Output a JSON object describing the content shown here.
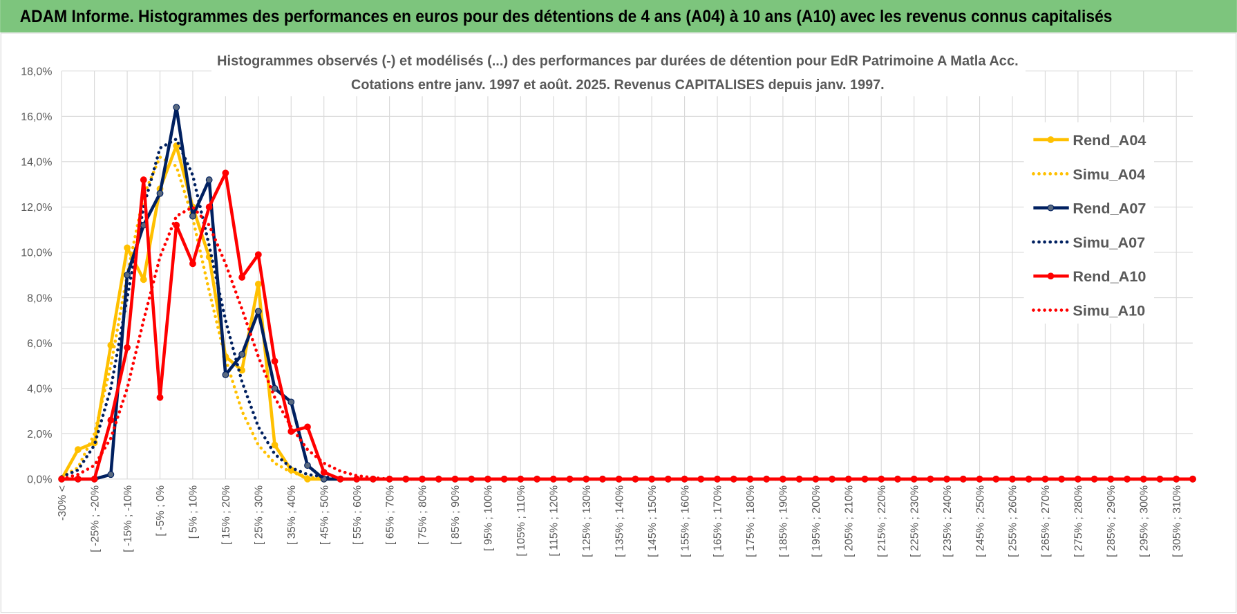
{
  "header": {
    "title": "ADAM Informe. Histogrammes des performances en euros pour des détentions de 4 ans (A04) à 10 ans (A10) avec les revenus connus capitalisés"
  },
  "chart_data": {
    "type": "line",
    "title": "Histogrammes observés (-) et modélisés (...) des performances par durées de détention pour EdR Patrimoine A Matla Acc.",
    "subtitle": "Cotations entre janv. 1997 et août. 2025. Revenus CAPITALISES depuis janv. 1997.",
    "categories": [
      "-30% <",
      null,
      "[ -25% ; -20%",
      null,
      "[ -15% ; -10%",
      null,
      "[ -5% ; 0%",
      null,
      "[ 5% ; 10%",
      null,
      "[ 15% ; 20%",
      null,
      "[ 25% ; 30%",
      null,
      "[ 35% ; 40%",
      null,
      "[ 45% ; 50%",
      null,
      "[ 55% ; 60%",
      null,
      "[ 65% ; 70%",
      null,
      "[ 75% ; 80%",
      null,
      "[ 85% ; 90%",
      null,
      "[ 95% ; 100%",
      null,
      "[ 105% ; 110%",
      null,
      "[ 115% ; 120%",
      null,
      "[ 125% ; 130%",
      null,
      "[ 135% ; 140%",
      null,
      "[ 145% ; 150%",
      null,
      "[ 155% ; 160%",
      null,
      "[ 165% ; 170%",
      null,
      "[ 175% ; 180%",
      null,
      "[ 185% ; 190%",
      null,
      "[ 195% ; 200%",
      null,
      "[ 205% ; 210%",
      null,
      "[ 215% ; 220%",
      null,
      "[ 225% ; 230%",
      null,
      "[ 235% ; 240%",
      null,
      "[ 245% ; 250%",
      null,
      "[ 255% ; 260%",
      null,
      "[ 265% ; 270%",
      null,
      "[ 275% ; 280%",
      null,
      "[ 285% ; 290%",
      null,
      "[ 295% ; 300%",
      null,
      "[ 305% ; 310%",
      null
    ],
    "series": [
      {
        "name": "Rend_A04",
        "color": "#FFC000",
        "style": "solid",
        "markers": true,
        "values": [
          0,
          1.3,
          1.6,
          5.9,
          10.2,
          8.8,
          12.8,
          14.7,
          12.0,
          9.8,
          5.4,
          4.8,
          8.6,
          1.5,
          0.4,
          0,
          0,
          0,
          0,
          0,
          0,
          0,
          0,
          0,
          0,
          0,
          0,
          0,
          0,
          0,
          0,
          0,
          0,
          0,
          0,
          0,
          0,
          0,
          0,
          0,
          0,
          0,
          0,
          0,
          0,
          0,
          0,
          0,
          0,
          0,
          0,
          0,
          0,
          0,
          0,
          0,
          0,
          0,
          0,
          0,
          0,
          0,
          0,
          0,
          0,
          0,
          0,
          0,
          0,
          0
        ]
      },
      {
        "name": "Simu_A04",
        "color": "#FFC000",
        "style": "dotted",
        "markers": false,
        "values": [
          0.1,
          0.5,
          2.0,
          5.0,
          9.0,
          12.5,
          14.2,
          13.8,
          11.5,
          8.3,
          5.3,
          3.0,
          1.5,
          0.7,
          0.3,
          0.1,
          0,
          0,
          0,
          0,
          0,
          0,
          0,
          0,
          0,
          0,
          0,
          0,
          0,
          0,
          0,
          0,
          0,
          0,
          0,
          0,
          0,
          0,
          0,
          0,
          0,
          0,
          0,
          0,
          0,
          0,
          0,
          0,
          0,
          0,
          0,
          0,
          0,
          0,
          0,
          0,
          0,
          0,
          0,
          0,
          0,
          0,
          0,
          0,
          0,
          0,
          0,
          0,
          0,
          0
        ]
      },
      {
        "name": "Rend_A07",
        "color": "#002060",
        "style": "solid",
        "markers": true,
        "values": [
          0,
          0,
          0,
          0.2,
          9.0,
          11.2,
          12.6,
          16.4,
          11.6,
          13.2,
          4.6,
          5.5,
          7.4,
          4.0,
          3.4,
          0.6,
          0,
          0,
          0,
          0,
          0,
          0,
          0,
          0,
          0,
          0,
          0,
          0,
          0,
          0,
          0,
          0,
          0,
          0,
          0,
          0,
          0,
          0,
          0,
          0,
          0,
          0,
          0,
          0,
          0,
          0,
          0,
          0,
          0,
          0,
          0,
          0,
          0,
          0,
          0,
          0,
          0,
          0,
          0,
          0,
          0,
          0,
          0,
          0,
          0,
          0,
          0,
          0,
          0,
          0
        ]
      },
      {
        "name": "Simu_A07",
        "color": "#002060",
        "style": "dotted",
        "markers": false,
        "values": [
          0.1,
          0.4,
          1.5,
          4.0,
          8.0,
          12.0,
          14.6,
          15.0,
          13.4,
          10.3,
          7.0,
          4.3,
          2.3,
          1.1,
          0.5,
          0.2,
          0.1,
          0,
          0,
          0,
          0,
          0,
          0,
          0,
          0,
          0,
          0,
          0,
          0,
          0,
          0,
          0,
          0,
          0,
          0,
          0,
          0,
          0,
          0,
          0,
          0,
          0,
          0,
          0,
          0,
          0,
          0,
          0,
          0,
          0,
          0,
          0,
          0,
          0,
          0,
          0,
          0,
          0,
          0,
          0,
          0,
          0,
          0,
          0,
          0,
          0,
          0,
          0,
          0,
          0
        ]
      },
      {
        "name": "Rend_A10",
        "color": "#FF0000",
        "style": "solid",
        "markers": true,
        "values": [
          0,
          0,
          0,
          2.6,
          5.8,
          13.2,
          3.6,
          11.2,
          9.5,
          12.0,
          13.5,
          8.9,
          9.9,
          5.2,
          2.1,
          2.3,
          0.3,
          0,
          0,
          0,
          0,
          0,
          0,
          0,
          0,
          0,
          0,
          0,
          0,
          0,
          0,
          0,
          0,
          0,
          0,
          0,
          0,
          0,
          0,
          0,
          0,
          0,
          0,
          0,
          0,
          0,
          0,
          0,
          0,
          0,
          0,
          0,
          0,
          0,
          0,
          0,
          0,
          0,
          0,
          0,
          0,
          0,
          0,
          0,
          0,
          0,
          0,
          0,
          0,
          0
        ]
      },
      {
        "name": "Simu_A10",
        "color": "#FF0000",
        "style": "dotted",
        "markers": false,
        "values": [
          0,
          0.2,
          0.6,
          1.8,
          4.0,
          7.0,
          9.8,
          11.6,
          12.0,
          11.2,
          9.5,
          7.5,
          5.4,
          3.6,
          2.3,
          1.3,
          0.7,
          0.35,
          0.15,
          0.06,
          0,
          0,
          0,
          0,
          0,
          0,
          0,
          0,
          0,
          0,
          0,
          0,
          0,
          0,
          0,
          0,
          0,
          0,
          0,
          0,
          0,
          0,
          0,
          0,
          0,
          0,
          0,
          0,
          0,
          0,
          0,
          0,
          0,
          0,
          0,
          0,
          0,
          0,
          0,
          0,
          0,
          0,
          0,
          0,
          0,
          0,
          0,
          0,
          0,
          0
        ]
      }
    ],
    "ylim": [
      0,
      18
    ],
    "yticks": [
      {
        "value": 0,
        "label": "0,0%"
      },
      {
        "value": 2,
        "label": "2,0%"
      },
      {
        "value": 4,
        "label": "4,0%"
      },
      {
        "value": 6,
        "label": "6,0%"
      },
      {
        "value": 8,
        "label": "8,0%"
      },
      {
        "value": 10,
        "label": "10,0%"
      },
      {
        "value": 12,
        "label": "12,0%"
      },
      {
        "value": 14,
        "label": "14,0%"
      },
      {
        "value": 16,
        "label": "16,0%"
      },
      {
        "value": 18,
        "label": "18,0%"
      }
    ],
    "grid": true,
    "legend": "right"
  }
}
